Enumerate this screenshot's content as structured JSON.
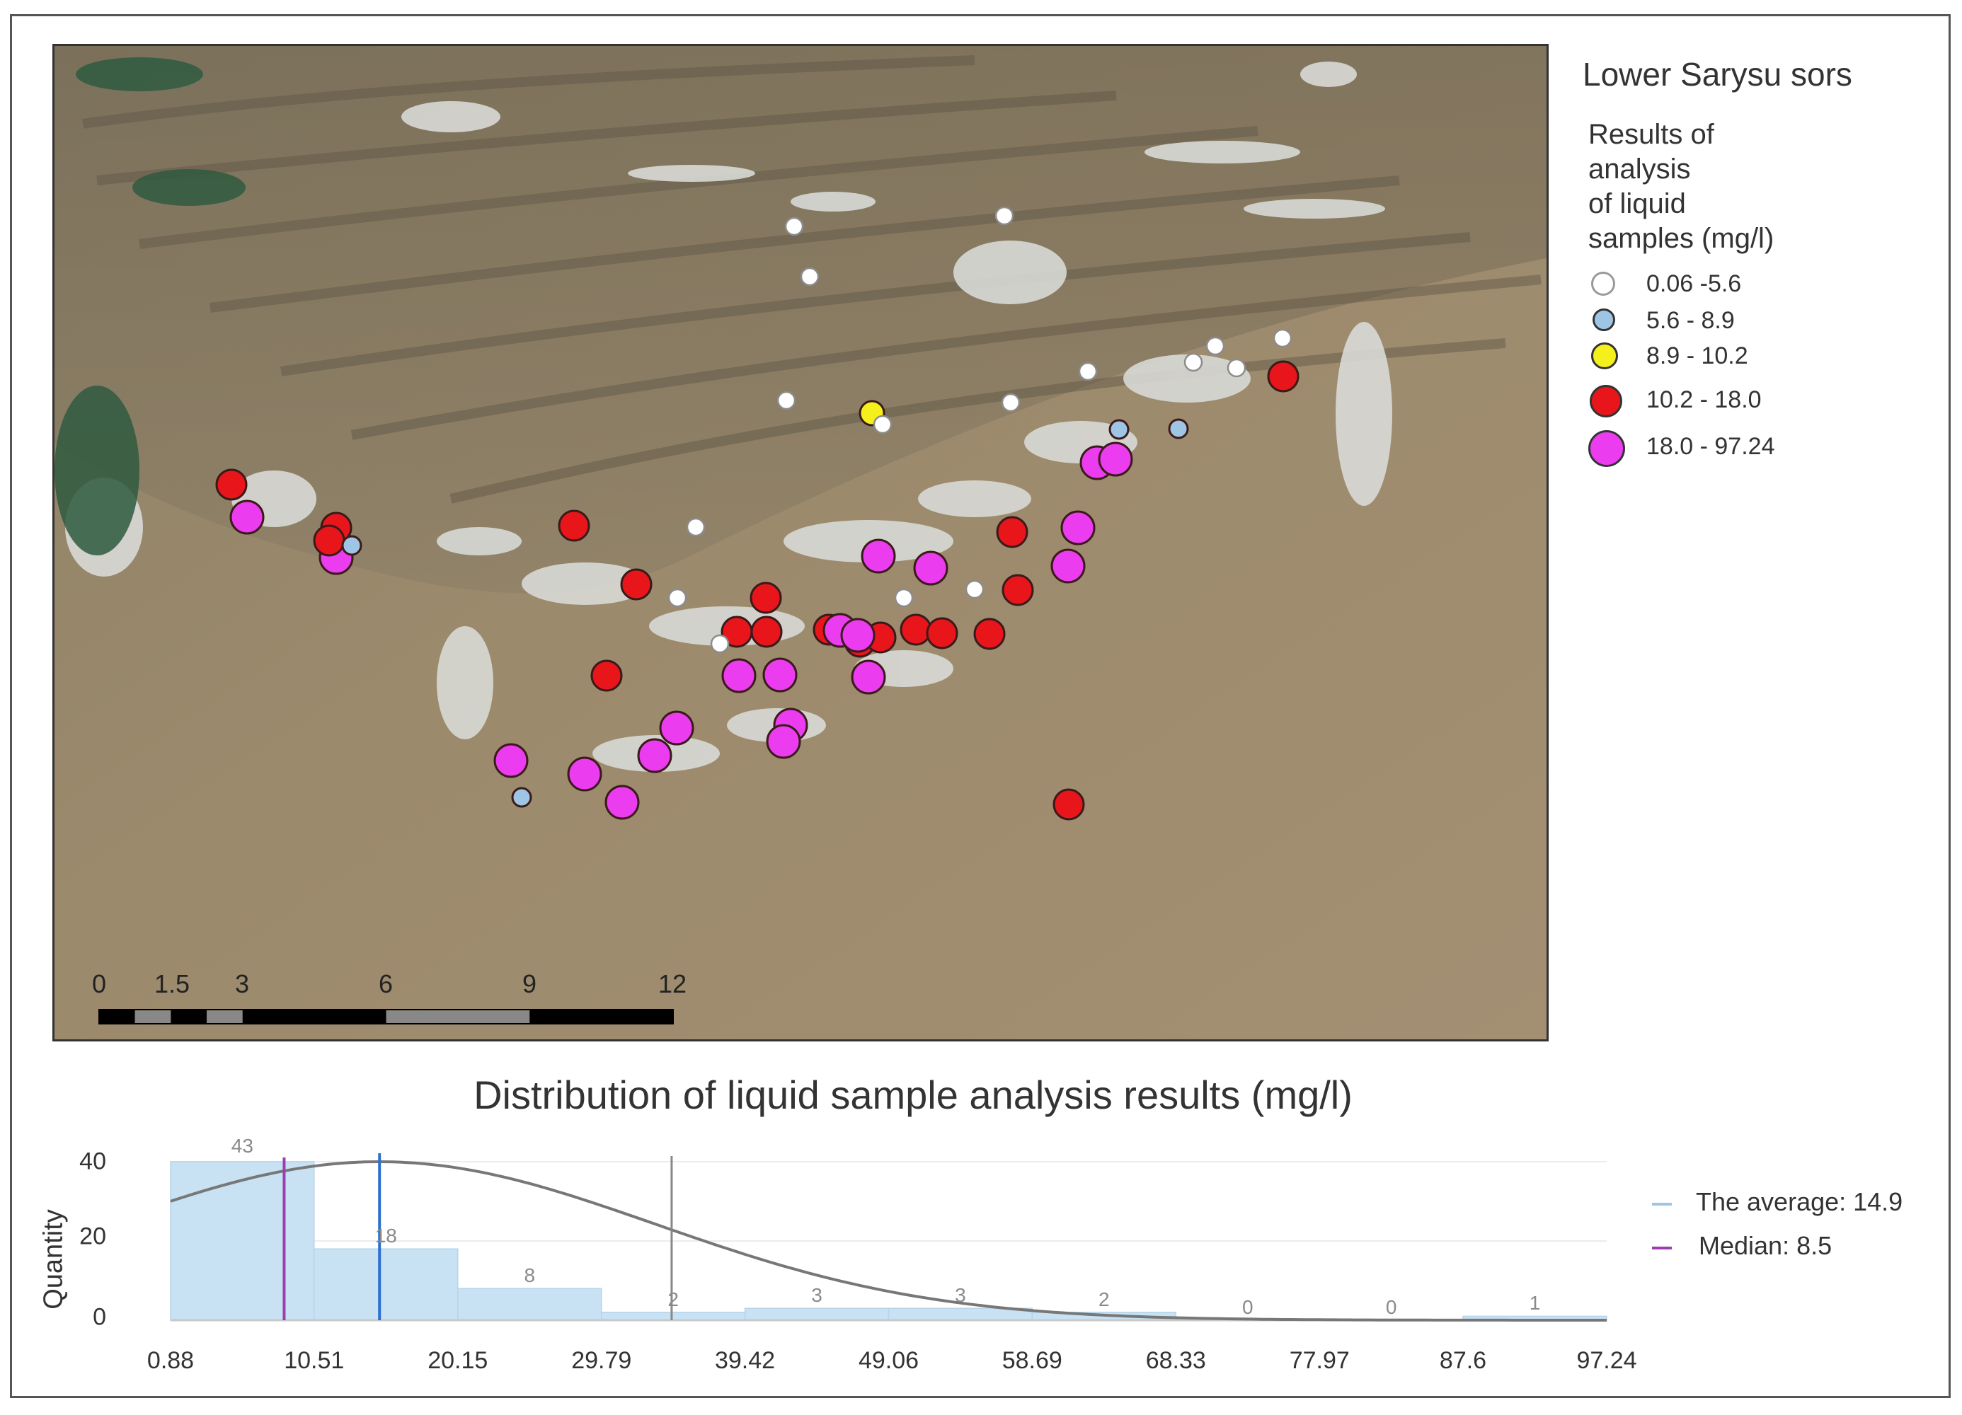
{
  "map": {
    "title": "Lower Sarysu sors",
    "legend_heading_lines": [
      "Results of",
      "analysis",
      "of liquid",
      "samples (mg/l)"
    ],
    "legend": [
      {
        "label": "0.06 -5.6",
        "color": "#ffffff",
        "class": "c1"
      },
      {
        "label": "5.6 - 8.9",
        "color": "#9ec6e4",
        "class": "c2"
      },
      {
        "label": "8.9 - 10.2",
        "color": "#f5f01c",
        "class": "c3"
      },
      {
        "label": "10.2 - 18.0",
        "color": "#e8161b",
        "class": "c4"
      },
      {
        "label": "18.0 - 97.24",
        "color": "#ec3cf0",
        "class": "c5"
      }
    ],
    "scale_bar": {
      "labels": [
        "0",
        "1.5",
        "3",
        "6",
        "9",
        "12"
      ],
      "values": [
        0,
        1.5,
        3,
        6,
        9,
        12
      ]
    }
  },
  "histogram": {
    "title": "Distribution of liquid sample analysis results (mg/l)",
    "ylabel": "Quantity",
    "y_ticks": [
      "40",
      "20",
      "0"
    ],
    "x_ticks": [
      "0.88",
      "10.51",
      "20.15",
      "29.79",
      "39.42",
      "49.06",
      "58.69",
      "68.33",
      "77.97",
      "87.6",
      "97.24"
    ],
    "bin_edges": [
      0.88,
      10.51,
      20.15,
      29.79,
      39.42,
      49.06,
      58.69,
      68.33,
      77.97,
      87.6,
      97.24
    ],
    "bin_counts": [
      43,
      18,
      8,
      2,
      3,
      3,
      2,
      0,
      0,
      1
    ],
    "bin_labels": [
      "43",
      "18",
      "8",
      "2",
      "3",
      "3",
      "2",
      "0",
      "0",
      "1"
    ],
    "ylim": [
      0,
      40
    ],
    "average_label": "The average: 14.9",
    "median_label": "Median: 8.5",
    "average_value": 14.9,
    "median_value": 8.5,
    "average_color": "#2f6fd0",
    "median_color": "#9b3fb0",
    "bar_color": "#c8e1f3"
  }
}
